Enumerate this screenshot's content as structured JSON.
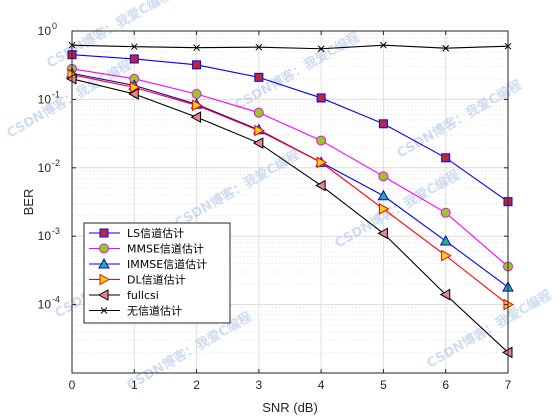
{
  "chart_data": {
    "type": "line",
    "xlabel": "SNR (dB)",
    "ylabel": "BER",
    "x": [
      0,
      1,
      2,
      3,
      4,
      5,
      6,
      7
    ],
    "xlim": [
      0,
      7
    ],
    "ylim": [
      1e-05,
      1
    ],
    "yscale": "log",
    "x_ticks": [
      "0",
      "1",
      "2",
      "3",
      "4",
      "5",
      "6",
      "7"
    ],
    "y_ticks": [
      {
        "value": 1,
        "mant": "10",
        "exp": "0"
      },
      {
        "value": 0.1,
        "mant": "10",
        "exp": "-1"
      },
      {
        "value": 0.01,
        "mant": "10",
        "exp": "-2"
      },
      {
        "value": 0.001,
        "mant": "10",
        "exp": "-3"
      },
      {
        "value": 0.0001,
        "mant": "10",
        "exp": "-4"
      }
    ],
    "grid": true,
    "legend_position": "bottom-left",
    "series": [
      {
        "name": "LS信道估计",
        "color": "#0000ff",
        "marker": "square",
        "marker_fill": "#c0272d",
        "values": [
          0.45,
          0.39,
          0.32,
          0.21,
          0.105,
          0.044,
          0.014,
          0.0032
        ]
      },
      {
        "name": "MMSE信道估计",
        "color": "#ff00ff",
        "marker": "circle",
        "marker_fill": "#8fd016",
        "values": [
          0.28,
          0.2,
          0.12,
          0.064,
          0.025,
          0.0075,
          0.0022,
          0.00036
        ]
      },
      {
        "name": "IMMSE信道估计",
        "color": "#0000ff",
        "marker": "triangle-up",
        "marker_fill": "#22b573",
        "values": [
          0.24,
          0.16,
          0.085,
          0.036,
          0.012,
          0.0039,
          0.00085,
          0.00018
        ]
      },
      {
        "name": "DL信道估计",
        "color": "#ff0000",
        "marker": "triangle-right",
        "marker_fill": "#f2d21b",
        "values": [
          0.23,
          0.15,
          0.082,
          0.035,
          0.012,
          0.0025,
          0.00052,
          0.0001
        ]
      },
      {
        "name": "fullcsi",
        "color": "#000000",
        "marker": "triangle-left",
        "marker_fill": "#e9868d",
        "values": [
          0.2,
          0.12,
          0.055,
          0.023,
          0.0055,
          0.0011,
          0.00014,
          2e-05
        ]
      },
      {
        "name": "无信道估计",
        "color": "#000000",
        "marker": "x",
        "marker_fill": "none",
        "values": [
          0.62,
          0.59,
          0.57,
          0.58,
          0.55,
          0.62,
          0.56,
          0.6
        ]
      }
    ]
  },
  "watermark": {
    "text": "CSDN博客：我爱C编程",
    "color": "#a9c1e6"
  }
}
